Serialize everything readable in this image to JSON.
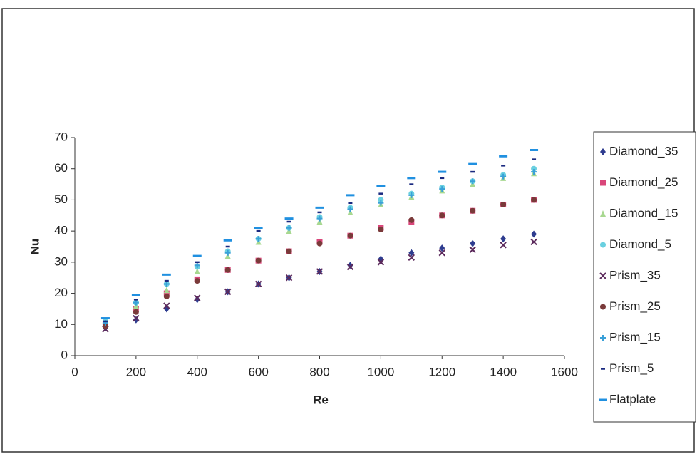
{
  "chart_data": {
    "type": "scatter",
    "x_label": "Re",
    "y_label": "Nu",
    "xlim": [
      0,
      1600
    ],
    "xticks": [
      0,
      200,
      400,
      600,
      800,
      1000,
      1200,
      1400,
      1600
    ],
    "ylim": [
      0,
      70
    ],
    "yticks": [
      0,
      10,
      20,
      30,
      40,
      50,
      60,
      70
    ],
    "legend": "right",
    "x": [
      100,
      200,
      300,
      400,
      500,
      600,
      700,
      800,
      900,
      1000,
      1100,
      1200,
      1300,
      1400,
      1500
    ],
    "series": [
      {
        "name": "Diamond_35",
        "color": "#2e3c8f",
        "marker": "diamond",
        "values": [
          9,
          11.5,
          15,
          18,
          20.5,
          23,
          25,
          27,
          29,
          31,
          33,
          34.5,
          36,
          37.5,
          39
        ]
      },
      {
        "name": "Diamond_25",
        "color": "#d9467a",
        "marker": "square",
        "values": [
          10,
          15,
          20,
          24.5,
          27.5,
          30.5,
          33.5,
          36.5,
          38.5,
          41,
          43,
          45,
          46.5,
          48.5,
          50
        ]
      },
      {
        "name": "Diamond_15",
        "color": "#a8d890",
        "marker": "triangle",
        "values": [
          10.5,
          16,
          21,
          27,
          32,
          36.5,
          40,
          43,
          46,
          48.5,
          51,
          53,
          55,
          57,
          58.5
        ]
      },
      {
        "name": "Diamond_5",
        "color": "#6ad0e0",
        "marker": "circle",
        "values": [
          11,
          17,
          23,
          28.5,
          33.5,
          37.5,
          41,
          44.5,
          47.5,
          50,
          52,
          54,
          56,
          58,
          60
        ]
      },
      {
        "name": "Prism_35",
        "color": "#5c2a5c",
        "marker": "x",
        "values": [
          8.5,
          12,
          16,
          18.5,
          20.5,
          23,
          25,
          27,
          28.5,
          30,
          31.5,
          33,
          34,
          35.5,
          36.5
        ]
      },
      {
        "name": "Prism_25",
        "color": "#7a3a3a",
        "marker": "circle",
        "values": [
          9.5,
          14,
          19,
          24,
          27.5,
          30.5,
          33.5,
          36,
          38.5,
          40.5,
          43.5,
          45,
          46.5,
          48.5,
          50
        ]
      },
      {
        "name": "Prism_15",
        "color": "#3aa0d8",
        "marker": "plus",
        "values": [
          10.5,
          17,
          23,
          29,
          33,
          37.5,
          41,
          44,
          47,
          49,
          51.5,
          53.5,
          56,
          57.5,
          59
        ]
      },
      {
        "name": "Prism_5",
        "color": "#1a2a80",
        "marker": "dash",
        "values": [
          11,
          18,
          24,
          30,
          35,
          40,
          43,
          46,
          49,
          52,
          55,
          57,
          59,
          61,
          63
        ]
      },
      {
        "name": "Flatplate",
        "color": "#2090e0",
        "marker": "bar",
        "values": [
          12,
          19.5,
          26,
          32,
          37,
          41,
          44,
          47.5,
          51.5,
          54.5,
          57,
          59,
          61.5,
          64,
          66
        ]
      }
    ]
  }
}
